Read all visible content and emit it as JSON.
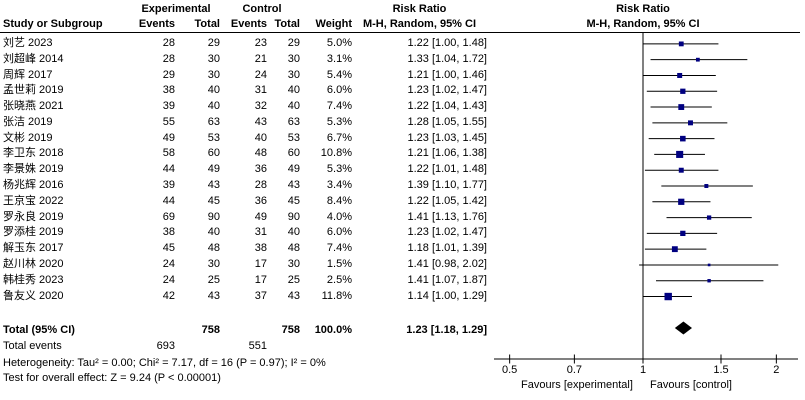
{
  "colors": {
    "background": "#ffffff",
    "text": "#000000",
    "ci_line": "#000000",
    "marker": "#000080",
    "diamond": "#000000",
    "axis": "#000000"
  },
  "header": {
    "group_experimental": "Experimental",
    "group_control": "Control",
    "study_col": "Study or Subgroup",
    "events_col": "Events",
    "total_col": "Total",
    "weight_col": "Weight",
    "rr_title": "Risk Ratio",
    "rr_subtitle": "M-H, Random, 95% CI",
    "plot_rr_title": "Risk Ratio",
    "plot_rr_subtitle": "M-H, Random, 95% CI"
  },
  "chart_data": {
    "type": "forest",
    "x_scale": "log",
    "effect_measure": "Risk Ratio",
    "method": "M-H, Random, 95% CI",
    "studies": [
      {
        "name": "刘艺 2023",
        "events_exp": "28",
        "total_exp": "29",
        "events_ctrl": "23",
        "total_ctrl": "29",
        "weight": "5.0%",
        "rr_text": "1.22 [1.00, 1.48]",
        "rr": 1.22,
        "lo": 1.0,
        "hi": 1.48,
        "w": 5.0
      },
      {
        "name": "刘超峰 2014",
        "events_exp": "28",
        "total_exp": "30",
        "events_ctrl": "21",
        "total_ctrl": "30",
        "weight": "3.1%",
        "rr_text": "1.33 [1.04, 1.72]",
        "rr": 1.33,
        "lo": 1.04,
        "hi": 1.72,
        "w": 3.1
      },
      {
        "name": "周辉 2017",
        "events_exp": "29",
        "total_exp": "30",
        "events_ctrl": "24",
        "total_ctrl": "30",
        "weight": "5.4%",
        "rr_text": "1.21 [1.00, 1.46]",
        "rr": 1.21,
        "lo": 1.0,
        "hi": 1.46,
        "w": 5.4
      },
      {
        "name": "孟世莉 2019",
        "events_exp": "38",
        "total_exp": "40",
        "events_ctrl": "31",
        "total_ctrl": "40",
        "weight": "6.0%",
        "rr_text": "1.23 [1.02, 1.47]",
        "rr": 1.23,
        "lo": 1.02,
        "hi": 1.47,
        "w": 6.0
      },
      {
        "name": "张晓燕 2021",
        "events_exp": "39",
        "total_exp": "40",
        "events_ctrl": "32",
        "total_ctrl": "40",
        "weight": "7.4%",
        "rr_text": "1.22 [1.04, 1.43]",
        "rr": 1.22,
        "lo": 1.04,
        "hi": 1.43,
        "w": 7.4
      },
      {
        "name": "张洁 2019",
        "events_exp": "55",
        "total_exp": "63",
        "events_ctrl": "43",
        "total_ctrl": "63",
        "weight": "5.3%",
        "rr_text": "1.28 [1.05, 1.55]",
        "rr": 1.28,
        "lo": 1.05,
        "hi": 1.55,
        "w": 5.3
      },
      {
        "name": "文彬 2019",
        "events_exp": "49",
        "total_exp": "53",
        "events_ctrl": "40",
        "total_ctrl": "53",
        "weight": "6.7%",
        "rr_text": "1.23 [1.03, 1.45]",
        "rr": 1.23,
        "lo": 1.03,
        "hi": 1.45,
        "w": 6.7
      },
      {
        "name": "李卫东 2018",
        "events_exp": "58",
        "total_exp": "60",
        "events_ctrl": "48",
        "total_ctrl": "60",
        "weight": "10.8%",
        "rr_text": "1.21 [1.06, 1.38]",
        "rr": 1.21,
        "lo": 1.06,
        "hi": 1.38,
        "w": 10.8
      },
      {
        "name": "李景姝 2019",
        "events_exp": "44",
        "total_exp": "49",
        "events_ctrl": "36",
        "total_ctrl": "49",
        "weight": "5.3%",
        "rr_text": "1.22 [1.01, 1.48]",
        "rr": 1.22,
        "lo": 1.01,
        "hi": 1.48,
        "w": 5.3
      },
      {
        "name": "杨兆辉 2016",
        "events_exp": "39",
        "total_exp": "43",
        "events_ctrl": "28",
        "total_ctrl": "43",
        "weight": "3.4%",
        "rr_text": "1.39 [1.10, 1.77]",
        "rr": 1.39,
        "lo": 1.1,
        "hi": 1.77,
        "w": 3.4
      },
      {
        "name": "王京宝 2022",
        "events_exp": "44",
        "total_exp": "45",
        "events_ctrl": "36",
        "total_ctrl": "45",
        "weight": "8.4%",
        "rr_text": "1.22 [1.05, 1.42]",
        "rr": 1.22,
        "lo": 1.05,
        "hi": 1.42,
        "w": 8.4
      },
      {
        "name": "罗永良 2019",
        "events_exp": "69",
        "total_exp": "90",
        "events_ctrl": "49",
        "total_ctrl": "90",
        "weight": "4.0%",
        "rr_text": "1.41 [1.13, 1.76]",
        "rr": 1.41,
        "lo": 1.13,
        "hi": 1.76,
        "w": 4.0
      },
      {
        "name": "罗添桂 2019",
        "events_exp": "38",
        "total_exp": "40",
        "events_ctrl": "31",
        "total_ctrl": "40",
        "weight": "6.0%",
        "rr_text": "1.23 [1.02, 1.47]",
        "rr": 1.23,
        "lo": 1.02,
        "hi": 1.47,
        "w": 6.0
      },
      {
        "name": "解玉东 2017",
        "events_exp": "45",
        "total_exp": "48",
        "events_ctrl": "38",
        "total_ctrl": "48",
        "weight": "7.4%",
        "rr_text": "1.18 [1.01, 1.39]",
        "rr": 1.18,
        "lo": 1.01,
        "hi": 1.39,
        "w": 7.4
      },
      {
        "name": "赵川林 2020",
        "events_exp": "24",
        "total_exp": "30",
        "events_ctrl": "17",
        "total_ctrl": "30",
        "weight": "1.5%",
        "rr_text": "1.41 [0.98, 2.02]",
        "rr": 1.41,
        "lo": 0.98,
        "hi": 2.02,
        "w": 1.5
      },
      {
        "name": "韩桂秀 2023",
        "events_exp": "24",
        "total_exp": "25",
        "events_ctrl": "17",
        "total_ctrl": "25",
        "weight": "2.5%",
        "rr_text": "1.41 [1.07, 1.87]",
        "rr": 1.41,
        "lo": 1.07,
        "hi": 1.87,
        "w": 2.5
      },
      {
        "name": "鲁友义 2020",
        "events_exp": "42",
        "total_exp": "43",
        "events_ctrl": "37",
        "total_ctrl": "43",
        "weight": "11.8%",
        "rr_text": "1.14 [1.00, 1.29]",
        "rr": 1.14,
        "lo": 1.0,
        "hi": 1.29,
        "w": 11.8
      }
    ],
    "total": {
      "label": "Total (95% CI)",
      "total_exp": "758",
      "total_ctrl": "758",
      "weight": "100.0%",
      "rr_text": "1.23 [1.18, 1.29]",
      "rr": 1.23,
      "lo": 1.18,
      "hi": 1.29
    },
    "total_events": {
      "label": "Total events",
      "events_exp": "693",
      "events_ctrl": "551"
    },
    "heterogeneity": "Heterogeneity: Tau² = 0.00; Chi² = 7.17, df = 16 (P = 0.97); I² = 0%",
    "overall_effect": "Test for overall effect: Z = 9.24 (P < 0.00001)",
    "axis": {
      "ticks": [
        0.5,
        0.7,
        1,
        1.5,
        2
      ],
      "tick_labels": [
        "0.5",
        "0.7",
        "1",
        "1.5",
        "2"
      ],
      "null_value": 1,
      "favours_left": "Favours [experimental]",
      "favours_right": "Favours [control]"
    }
  }
}
